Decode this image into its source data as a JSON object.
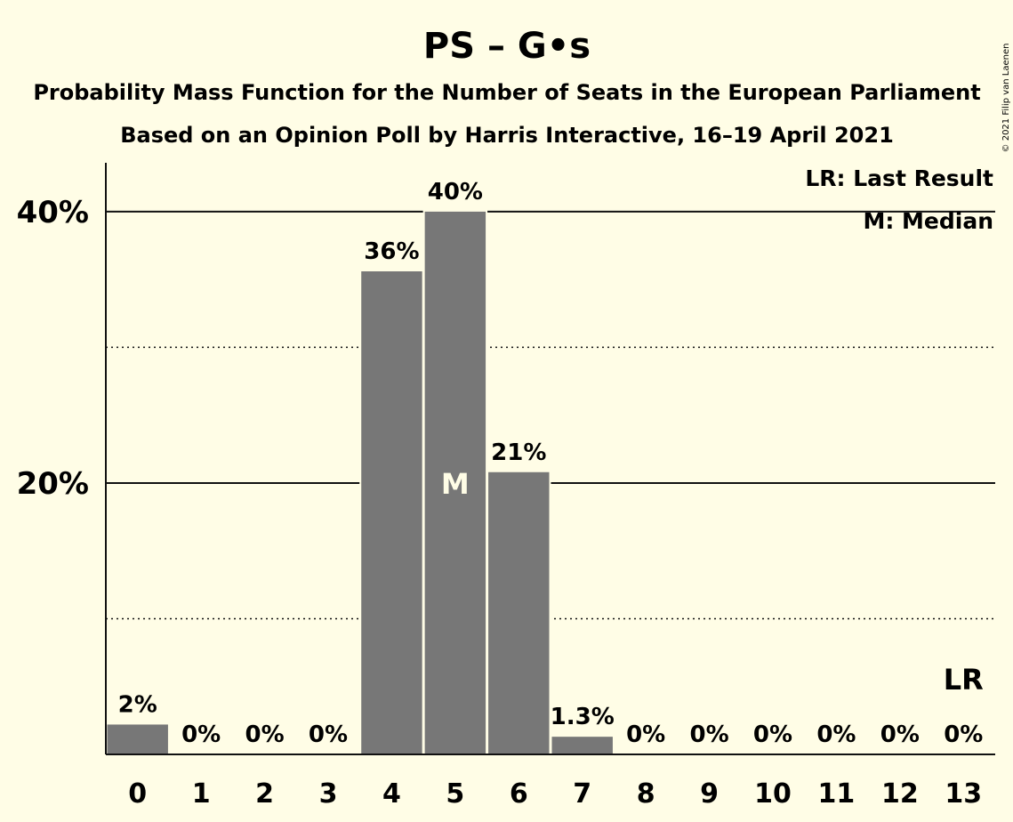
{
  "chart_data": {
    "type": "bar",
    "title": "PS – G•s",
    "subtitle_lines": [
      "Probability Mass Function for the Number of Seats in the European Parliament",
      "Based on an Opinion Poll by Harris Interactive, 16–19 April 2021"
    ],
    "categories": [
      "0",
      "1",
      "2",
      "3",
      "4",
      "5",
      "6",
      "7",
      "8",
      "9",
      "10",
      "11",
      "12",
      "13"
    ],
    "values": [
      2.2,
      0,
      0,
      0,
      35.6,
      40.0,
      20.8,
      1.3,
      0,
      0,
      0,
      0,
      0,
      0
    ],
    "value_labels": [
      "2%",
      "0%",
      "0%",
      "0%",
      "36%",
      "40%",
      "21%",
      "1.3%",
      "0%",
      "0%",
      "0%",
      "0%",
      "0%",
      "0%"
    ],
    "ylim": [
      0,
      43.6
    ],
    "yticks": [
      {
        "value": 20,
        "label": "20%"
      },
      {
        "value": 40,
        "label": "40%"
      }
    ],
    "minor_gridlines": [
      10,
      30
    ],
    "median_index": 5,
    "median_label": "M",
    "last_result_index": 13,
    "last_result_label": "LR",
    "legend": [
      "LR: Last Result",
      "M: Median"
    ],
    "legend_position": "top-right",
    "bar_color": "#777777",
    "copyright": "© 2021 Filip van Laenen"
  }
}
